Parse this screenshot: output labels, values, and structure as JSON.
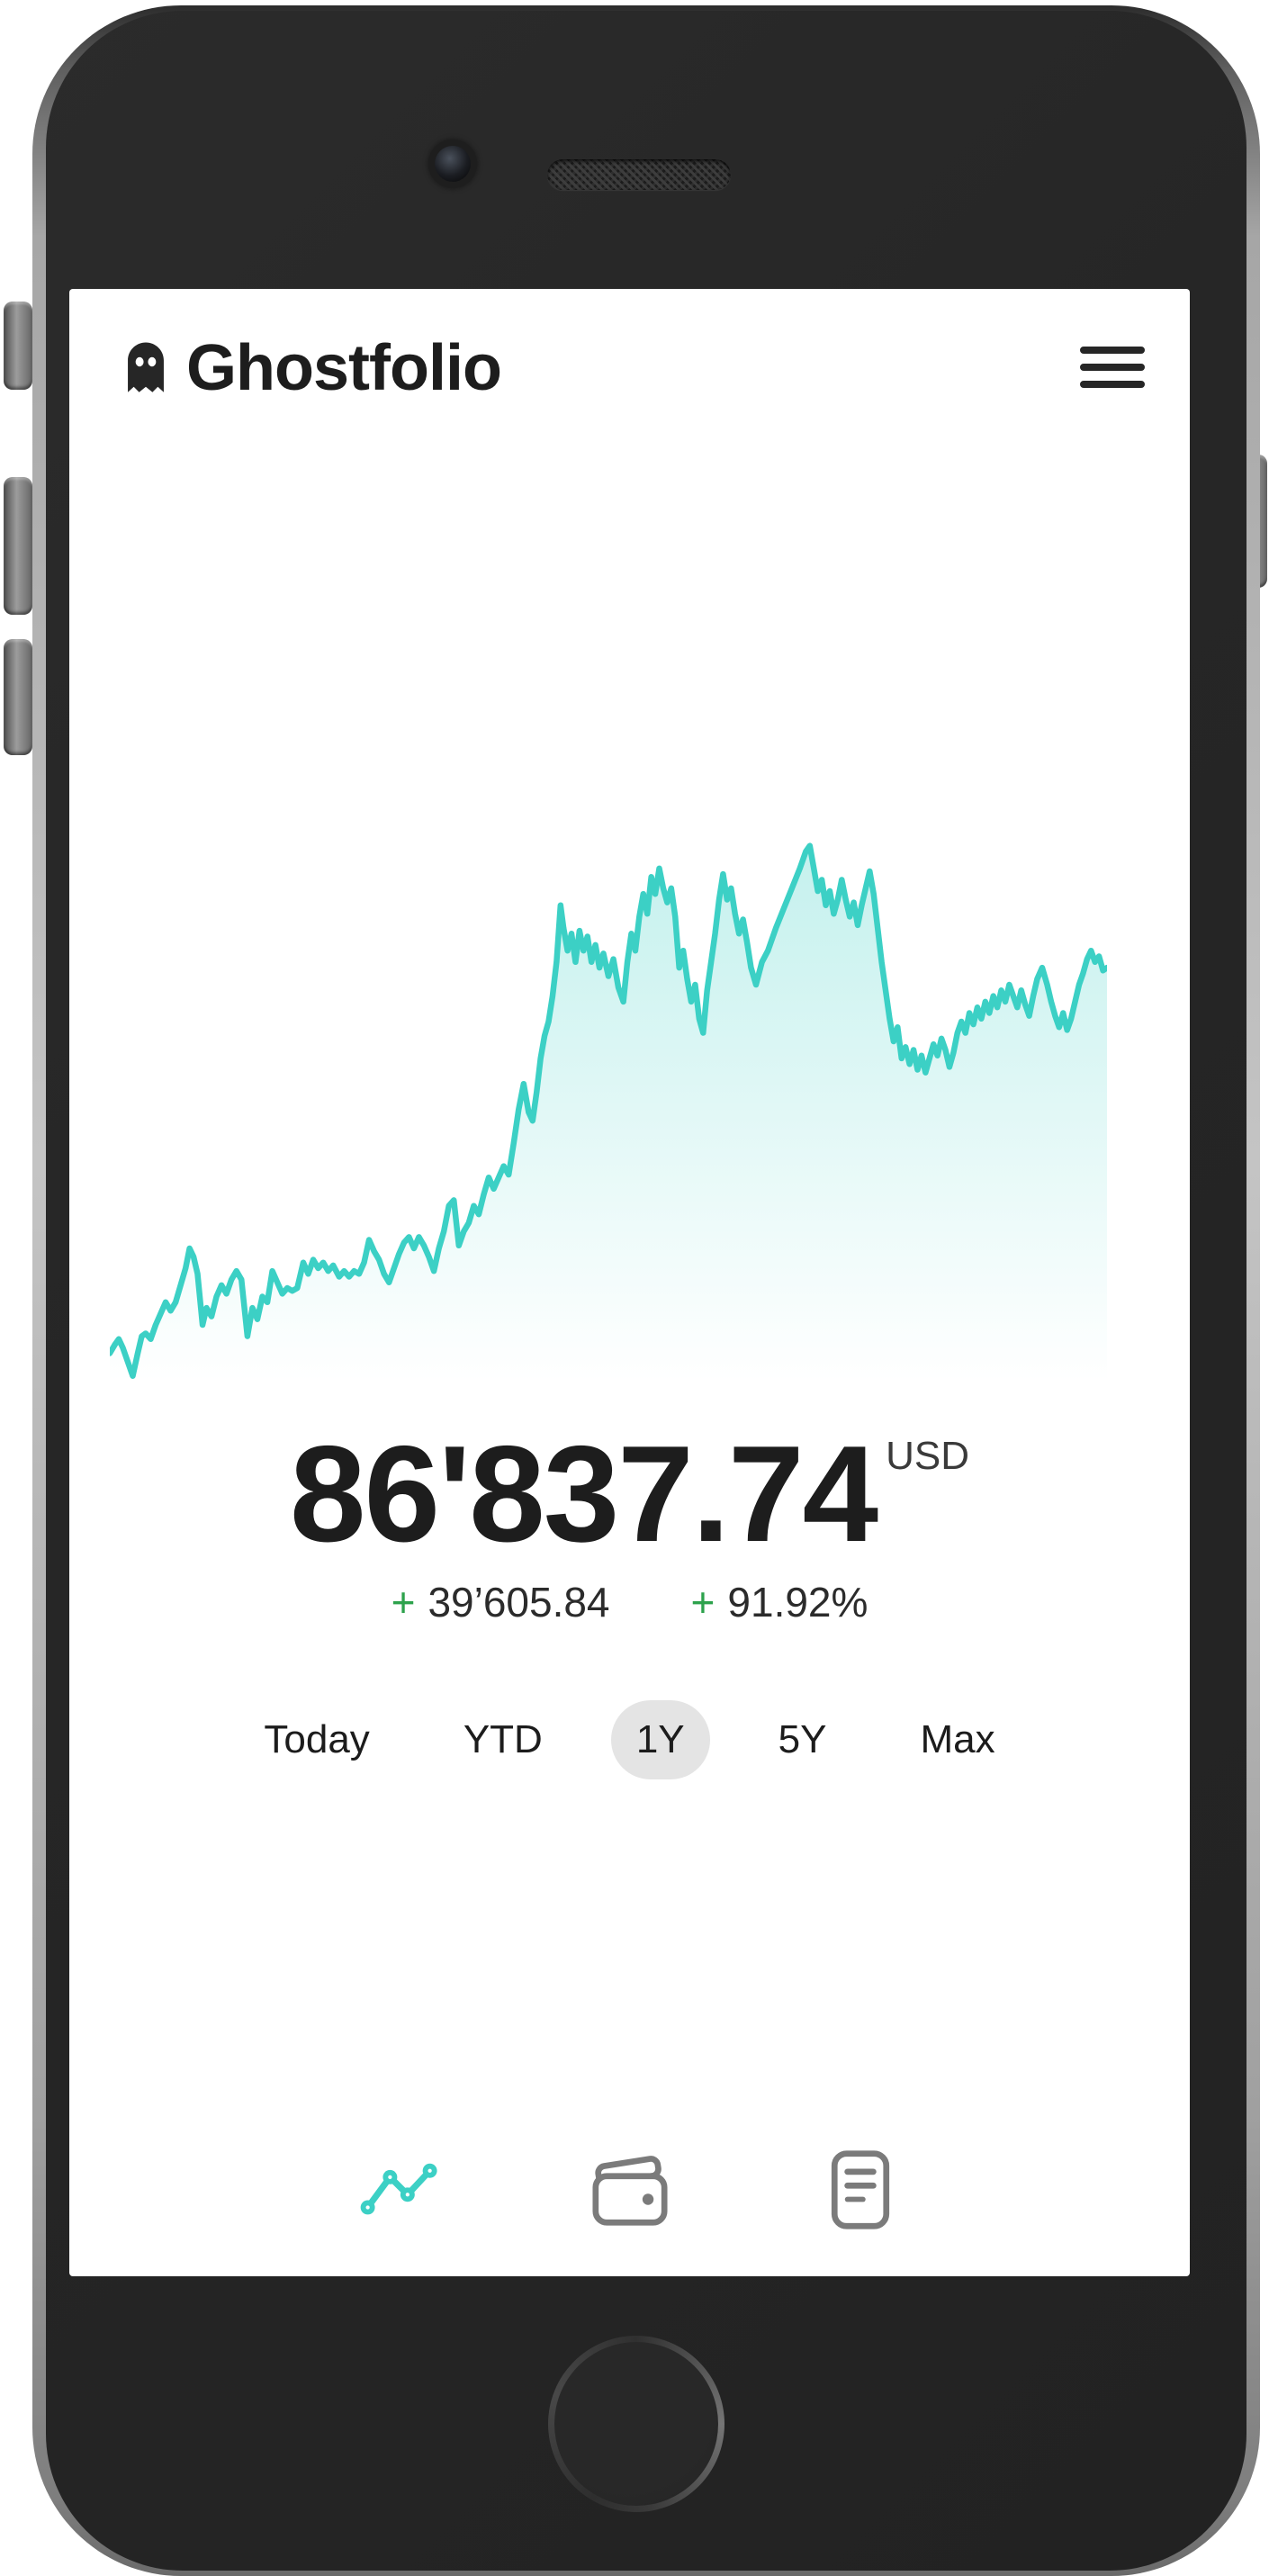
{
  "app": {
    "name": "Ghostfolio"
  },
  "header": {
    "title": "Ghostfolio",
    "logo_icon": "ghost-icon",
    "menu_icon": "hamburger-menu-icon"
  },
  "summary": {
    "value": "86'837.74",
    "currency": "USD",
    "change_absolute_sign": "+",
    "change_absolute": "39’605.84",
    "change_percent_sign": "+",
    "change_percent": "91.92%"
  },
  "ranges": {
    "options": [
      {
        "label": "Today",
        "selected": false
      },
      {
        "label": "YTD",
        "selected": false
      },
      {
        "label": "1Y",
        "selected": true
      },
      {
        "label": "5Y",
        "selected": false
      },
      {
        "label": "Max",
        "selected": false
      }
    ]
  },
  "nav": {
    "items": [
      {
        "icon": "line-chart-icon",
        "active": true
      },
      {
        "icon": "wallet-icon",
        "active": false
      },
      {
        "icon": "list-document-icon",
        "active": false
      }
    ]
  },
  "colors": {
    "accent_teal": "#3cd0c5",
    "area_fill_top": "rgba(61,208,197,0.30)",
    "area_fill_bottom": "rgba(61,208,197,0.0)",
    "positive_green": "#2da24c",
    "selected_pill_bg": "#e4e4e4",
    "inactive_icon_gray": "#7b7b7b",
    "text_dark": "#1d1d1d"
  },
  "chart_data": {
    "type": "area",
    "series_name": "portfolio-performance-1Y",
    "axes_visible": false,
    "grid": false,
    "legend": "none",
    "coords": "x 0-100 left to right, y 0-100 bottom to top, normalized (no axis labels shown in UI)",
    "points": [
      [
        0,
        5
      ],
      [
        0.5,
        6.5
      ],
      [
        0.9,
        7.5
      ],
      [
        1.3,
        6
      ],
      [
        1.8,
        3.5
      ],
      [
        2.3,
        1
      ],
      [
        2.8,
        5
      ],
      [
        3.2,
        8
      ],
      [
        3.6,
        8.5
      ],
      [
        4.1,
        7.5
      ],
      [
        4.6,
        10
      ],
      [
        5.1,
        12
      ],
      [
        5.6,
        14
      ],
      [
        6.1,
        12.5
      ],
      [
        6.6,
        14
      ],
      [
        7.1,
        17
      ],
      [
        7.6,
        20
      ],
      [
        8,
        23.5
      ],
      [
        8.4,
        22
      ],
      [
        8.8,
        19
      ],
      [
        9.3,
        10
      ],
      [
        9.7,
        13
      ],
      [
        10.2,
        11.5
      ],
      [
        10.7,
        15
      ],
      [
        11.2,
        17
      ],
      [
        11.7,
        15.5
      ],
      [
        12.2,
        18
      ],
      [
        12.7,
        19.5
      ],
      [
        13.2,
        18
      ],
      [
        13.8,
        8
      ],
      [
        14.3,
        13
      ],
      [
        14.8,
        11
      ],
      [
        15.3,
        15
      ],
      [
        15.8,
        14
      ],
      [
        16.3,
        19.5
      ],
      [
        16.8,
        17.5
      ],
      [
        17.3,
        15.5
      ],
      [
        17.8,
        16.5
      ],
      [
        18.3,
        16
      ],
      [
        18.8,
        16.5
      ],
      [
        19.4,
        21
      ],
      [
        19.9,
        19
      ],
      [
        20.4,
        21.5
      ],
      [
        20.9,
        20
      ],
      [
        21.4,
        21
      ],
      [
        21.9,
        19.5
      ],
      [
        22.4,
        20.5
      ],
      [
        23,
        18.5
      ],
      [
        23.5,
        19.5
      ],
      [
        24,
        18.5
      ],
      [
        24.5,
        19.5
      ],
      [
        25,
        19
      ],
      [
        25.5,
        21
      ],
      [
        26,
        25
      ],
      [
        26.5,
        23
      ],
      [
        27,
        21.5
      ],
      [
        27.5,
        19
      ],
      [
        28,
        17.5
      ],
      [
        28.5,
        20
      ],
      [
        29,
        22.5
      ],
      [
        29.5,
        24.5
      ],
      [
        30,
        25.5
      ],
      [
        30.5,
        23.5
      ],
      [
        31,
        25.5
      ],
      [
        31.5,
        24
      ],
      [
        32,
        22
      ],
      [
        32.5,
        19.5
      ],
      [
        33,
        23.5
      ],
      [
        33.5,
        26.5
      ],
      [
        34,
        31
      ],
      [
        34.5,
        32
      ],
      [
        35,
        24
      ],
      [
        35.5,
        26.5
      ],
      [
        36,
        28
      ],
      [
        36.5,
        31
      ],
      [
        37,
        29.5
      ],
      [
        37.5,
        33
      ],
      [
        38,
        36
      ],
      [
        38.5,
        34
      ],
      [
        39,
        36
      ],
      [
        39.5,
        38
      ],
      [
        40,
        36.5
      ],
      [
        40.5,
        42
      ],
      [
        41,
        48
      ],
      [
        41.5,
        52.5
      ],
      [
        42,
        47.5
      ],
      [
        42.4,
        46
      ],
      [
        42.8,
        51
      ],
      [
        43.2,
        57
      ],
      [
        43.6,
        61
      ],
      [
        44,
        63.5
      ],
      [
        44.4,
        68
      ],
      [
        44.8,
        74
      ],
      [
        45.2,
        84
      ],
      [
        45.5,
        80
      ],
      [
        45.9,
        76
      ],
      [
        46.3,
        79
      ],
      [
        46.7,
        74
      ],
      [
        47.1,
        79.5
      ],
      [
        47.5,
        76
      ],
      [
        47.9,
        78.5
      ],
      [
        48.3,
        74
      ],
      [
        48.7,
        77
      ],
      [
        49.1,
        73
      ],
      [
        49.5,
        75.5
      ],
      [
        50,
        71.5
      ],
      [
        50.5,
        74.5
      ],
      [
        51,
        69.5
      ],
      [
        51.5,
        67
      ],
      [
        51.9,
        74
      ],
      [
        52.3,
        79
      ],
      [
        52.7,
        76
      ],
      [
        53.1,
        82
      ],
      [
        53.5,
        86
      ],
      [
        53.9,
        82.5
      ],
      [
        54.3,
        89
      ],
      [
        54.7,
        86
      ],
      [
        55.1,
        90.5
      ],
      [
        55.5,
        87
      ],
      [
        55.9,
        84.5
      ],
      [
        56.3,
        87
      ],
      [
        56.7,
        82
      ],
      [
        57.1,
        73
      ],
      [
        57.5,
        76
      ],
      [
        57.9,
        71
      ],
      [
        58.3,
        67
      ],
      [
        58.7,
        70
      ],
      [
        59.1,
        64
      ],
      [
        59.5,
        61.5
      ],
      [
        59.9,
        69
      ],
      [
        60.3,
        74
      ],
      [
        60.7,
        79
      ],
      [
        61.1,
        85
      ],
      [
        61.5,
        89.5
      ],
      [
        61.9,
        85
      ],
      [
        62.3,
        87
      ],
      [
        62.7,
        82.5
      ],
      [
        63.1,
        79
      ],
      [
        63.5,
        81.5
      ],
      [
        63.9,
        77.5
      ],
      [
        64.3,
        73
      ],
      [
        64.8,
        70
      ],
      [
        65.4,
        74
      ],
      [
        66,
        76
      ],
      [
        66.8,
        80
      ],
      [
        67.6,
        83.5
      ],
      [
        68.4,
        87
      ],
      [
        69.2,
        90.5
      ],
      [
        69.8,
        93.5
      ],
      [
        70.2,
        94.5
      ],
      [
        70.6,
        90.5
      ],
      [
        71,
        86.5
      ],
      [
        71.4,
        88.5
      ],
      [
        71.8,
        84
      ],
      [
        72.2,
        86.5
      ],
      [
        72.6,
        82.5
      ],
      [
        73,
        85
      ],
      [
        73.4,
        88.5
      ],
      [
        73.8,
        85
      ],
      [
        74.2,
        82
      ],
      [
        74.6,
        84.5
      ],
      [
        75,
        80.5
      ],
      [
        75.4,
        84
      ],
      [
        75.8,
        87
      ],
      [
        76.2,
        90
      ],
      [
        76.6,
        86
      ],
      [
        77,
        80
      ],
      [
        77.4,
        74
      ],
      [
        77.8,
        69
      ],
      [
        78.2,
        64
      ],
      [
        78.6,
        60
      ],
      [
        79,
        62.5
      ],
      [
        79.4,
        57
      ],
      [
        79.8,
        59
      ],
      [
        80.2,
        56
      ],
      [
        80.6,
        58.5
      ],
      [
        81,
        55
      ],
      [
        81.4,
        57.5
      ],
      [
        81.8,
        54.5
      ],
      [
        82.2,
        57
      ],
      [
        82.6,
        59.5
      ],
      [
        83,
        57.5
      ],
      [
        83.4,
        60.5
      ],
      [
        83.8,
        58.5
      ],
      [
        84.2,
        55.5
      ],
      [
        84.6,
        58
      ],
      [
        85,
        61.5
      ],
      [
        85.4,
        63.5
      ],
      [
        85.8,
        61.5
      ],
      [
        86.2,
        65
      ],
      [
        86.6,
        63
      ],
      [
        87,
        66
      ],
      [
        87.4,
        64
      ],
      [
        87.8,
        67
      ],
      [
        88.2,
        65
      ],
      [
        88.6,
        68
      ],
      [
        89,
        66
      ],
      [
        89.4,
        69
      ],
      [
        89.8,
        67
      ],
      [
        90.2,
        70
      ],
      [
        90.6,
        68
      ],
      [
        91,
        66
      ],
      [
        91.4,
        69
      ],
      [
        91.8,
        66.5
      ],
      [
        92.2,
        64.5
      ],
      [
        92.6,
        68
      ],
      [
        93,
        71
      ],
      [
        93.5,
        73
      ],
      [
        94,
        70
      ],
      [
        94.4,
        67
      ],
      [
        94.8,
        64.5
      ],
      [
        95.2,
        62.5
      ],
      [
        95.6,
        65
      ],
      [
        96,
        62
      ],
      [
        96.4,
        64
      ],
      [
        96.8,
        67
      ],
      [
        97.2,
        70
      ],
      [
        97.6,
        72
      ],
      [
        98,
        74.5
      ],
      [
        98.4,
        76
      ],
      [
        98.8,
        74
      ],
      [
        99.2,
        75
      ],
      [
        99.6,
        72.5
      ],
      [
        100,
        73
      ]
    ]
  }
}
